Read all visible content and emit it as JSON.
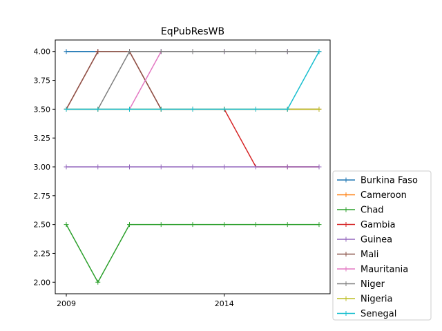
{
  "chart_data": {
    "type": "line",
    "title": "EqPubResWB",
    "xlabel": "",
    "ylabel": "",
    "x": [
      2009,
      2010,
      2011,
      2012,
      2013,
      2014,
      2015,
      2016,
      2017
    ],
    "x_ticks": [
      2009,
      2014
    ],
    "x_tick_labels": [
      "2009",
      "2014"
    ],
    "xlim": [
      2008.65,
      2017.35
    ],
    "ylim": [
      1.9,
      4.1
    ],
    "y_ticks": [
      2.0,
      2.25,
      2.5,
      2.75,
      3.0,
      3.25,
      3.5,
      3.75,
      4.0
    ],
    "y_tick_labels": [
      "2.00",
      "2.25",
      "2.50",
      "2.75",
      "3.00",
      "3.25",
      "3.50",
      "3.75",
      "4.00"
    ],
    "grid": false,
    "legend_position": "outside-right-bottom",
    "series": [
      {
        "name": "Burkina Faso",
        "color": "#1f77b4",
        "values": [
          4.0,
          4.0,
          4.0,
          4.0,
          4.0,
          4.0,
          4.0,
          4.0,
          4.0
        ]
      },
      {
        "name": "Cameroon",
        "color": "#ff7f0e",
        "values": [
          3.5,
          3.5,
          3.5,
          3.5,
          3.5,
          3.5,
          3.5,
          3.5,
          3.5
        ]
      },
      {
        "name": "Chad",
        "color": "#2ca02c",
        "values": [
          2.5,
          2.0,
          2.5,
          2.5,
          2.5,
          2.5,
          2.5,
          2.5,
          2.5
        ]
      },
      {
        "name": "Gambia",
        "color": "#d62728",
        "values": [
          3.5,
          4.0,
          4.0,
          3.5,
          3.5,
          3.5,
          3.0,
          3.0,
          3.0
        ]
      },
      {
        "name": "Guinea",
        "color": "#9467bd",
        "values": [
          3.0,
          3.0,
          3.0,
          3.0,
          3.0,
          3.0,
          3.0,
          3.0,
          3.0
        ]
      },
      {
        "name": "Mali",
        "color": "#8c564b",
        "values": [
          3.5,
          4.0,
          4.0,
          3.5,
          3.5,
          3.5,
          3.5,
          3.5,
          3.5
        ]
      },
      {
        "name": "Mauritania",
        "color": "#e377c2",
        "values": [
          3.5,
          3.5,
          3.5,
          4.0,
          4.0,
          4.0,
          4.0,
          4.0,
          4.0
        ]
      },
      {
        "name": "Niger",
        "color": "#7f7f7f",
        "values": [
          3.5,
          3.5,
          4.0,
          4.0,
          4.0,
          4.0,
          4.0,
          4.0,
          4.0
        ]
      },
      {
        "name": "Nigeria",
        "color": "#bcbd22",
        "values": [
          3.5,
          3.5,
          3.5,
          3.5,
          3.5,
          3.5,
          3.5,
          3.5,
          3.5
        ]
      },
      {
        "name": "Senegal",
        "color": "#17becf",
        "values": [
          3.5,
          3.5,
          3.5,
          3.5,
          3.5,
          3.5,
          3.5,
          3.5,
          4.0
        ]
      }
    ]
  }
}
